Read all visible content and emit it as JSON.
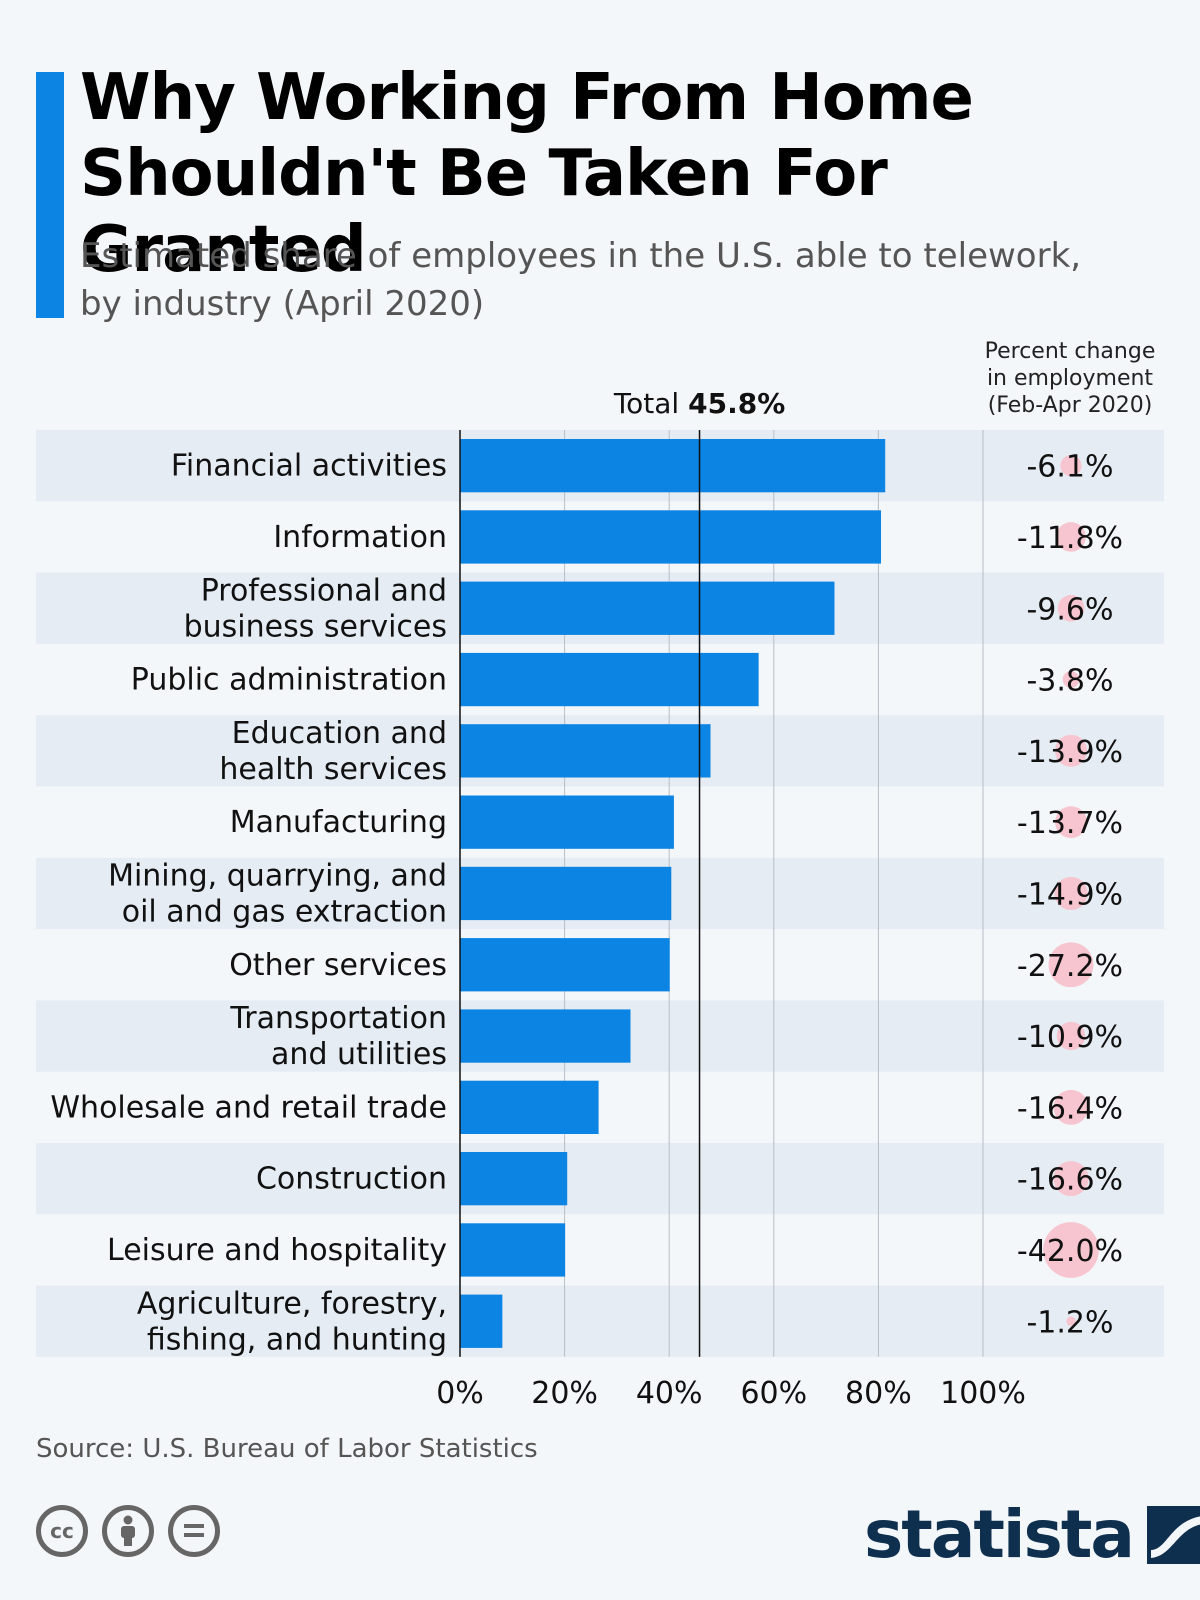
{
  "header": {
    "title_line1": "Why Working From Home",
    "title_line2": "Shouldn't Be Taken For Granted",
    "subtitle_line1": "Estimated share of employees in the U.S. able to telework,",
    "subtitle_line2": "by industry (April 2020)"
  },
  "right_column": {
    "header_line1": "Percent change",
    "header_line2": "in employment",
    "header_line3": "(Feb-Apr 2020)"
  },
  "reference": {
    "label": "Total",
    "value_label": "45.8%",
    "value": 45.8
  },
  "footer": {
    "source": "Source: U.S. Bureau of Labor Statistics",
    "brand": "statista"
  },
  "colors": {
    "bar": "#0b84e3",
    "accent": "#0b84e3",
    "bubble": "#f7c5cf",
    "brand": "#0f2f4f"
  },
  "chart_data": {
    "type": "bar",
    "orientation": "horizontal",
    "categories": [
      [
        "Financial activities"
      ],
      [
        "Information"
      ],
      [
        "Professional and",
        "business services"
      ],
      [
        "Public administration"
      ],
      [
        "Education and",
        "health services"
      ],
      [
        "Manufacturing"
      ],
      [
        "Mining, quarrying, and",
        "oil and gas extraction"
      ],
      [
        "Other services"
      ],
      [
        "Transportation",
        "and utilities"
      ],
      [
        "Wholesale and retail trade"
      ],
      [
        "Construction"
      ],
      [
        "Leisure and hospitality"
      ],
      [
        "Agriculture, forestry,",
        "fishing, and hunting"
      ]
    ],
    "values": [
      81.3,
      80.5,
      71.6,
      57.1,
      47.9,
      40.9,
      40.4,
      40.1,
      32.6,
      26.5,
      20.5,
      20.1,
      8.1
    ],
    "employment_change": [
      -6.1,
      -11.8,
      -9.6,
      -3.8,
      -13.9,
      -13.7,
      -14.9,
      -27.2,
      -10.9,
      -16.4,
      -16.6,
      -42.0,
      -1.2
    ],
    "employment_change_labels": [
      "-6.1%",
      "-11.8%",
      "-9.6%",
      "-3.8%",
      "-13.9%",
      "-13.7%",
      "-14.9%",
      "-27.2%",
      "-10.9%",
      "-16.4%",
      "-16.6%",
      "-42.0%",
      "-1.2%"
    ],
    "xlim": [
      0,
      100
    ],
    "xticks": [
      "0%",
      "20%",
      "40%",
      "60%",
      "80%",
      "100%"
    ],
    "xtick_values": [
      0,
      20,
      40,
      60,
      80,
      100
    ],
    "grid": true
  }
}
